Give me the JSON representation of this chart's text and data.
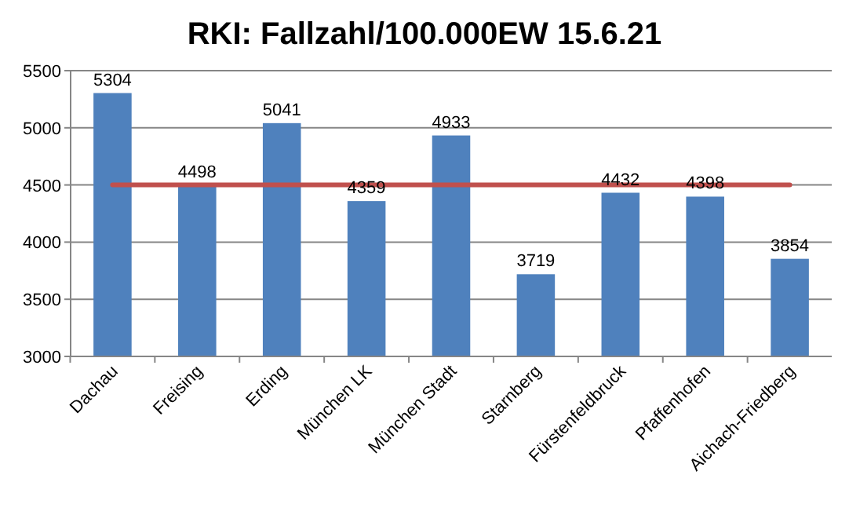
{
  "chart_data": {
    "type": "bar",
    "title": "RKI: Fallzahl/100.000EW 15.6.21",
    "categories": [
      "Dachau",
      "Freising",
      "Erding",
      "München LK",
      "München Stadt",
      "Starnberg",
      "Fürstenfeldbruck",
      "Pfaffenhofen",
      "Aichach-Friedberg"
    ],
    "series": [
      {
        "color": "#4f81bd",
        "values": [
          5304,
          4498,
          5041,
          4359,
          4933,
          3719,
          4432,
          4398,
          3854
        ],
        "data_labels": true
      },
      {
        "type": "line",
        "color": "#c0504d",
        "values": [
          4500,
          4500,
          4500,
          4500,
          4500,
          4500,
          4500,
          4500,
          4500
        ]
      }
    ],
    "ylim": [
      3000,
      5500
    ],
    "yticks": [
      3000,
      3500,
      4000,
      4500,
      5000,
      5500
    ],
    "grid": "y"
  }
}
